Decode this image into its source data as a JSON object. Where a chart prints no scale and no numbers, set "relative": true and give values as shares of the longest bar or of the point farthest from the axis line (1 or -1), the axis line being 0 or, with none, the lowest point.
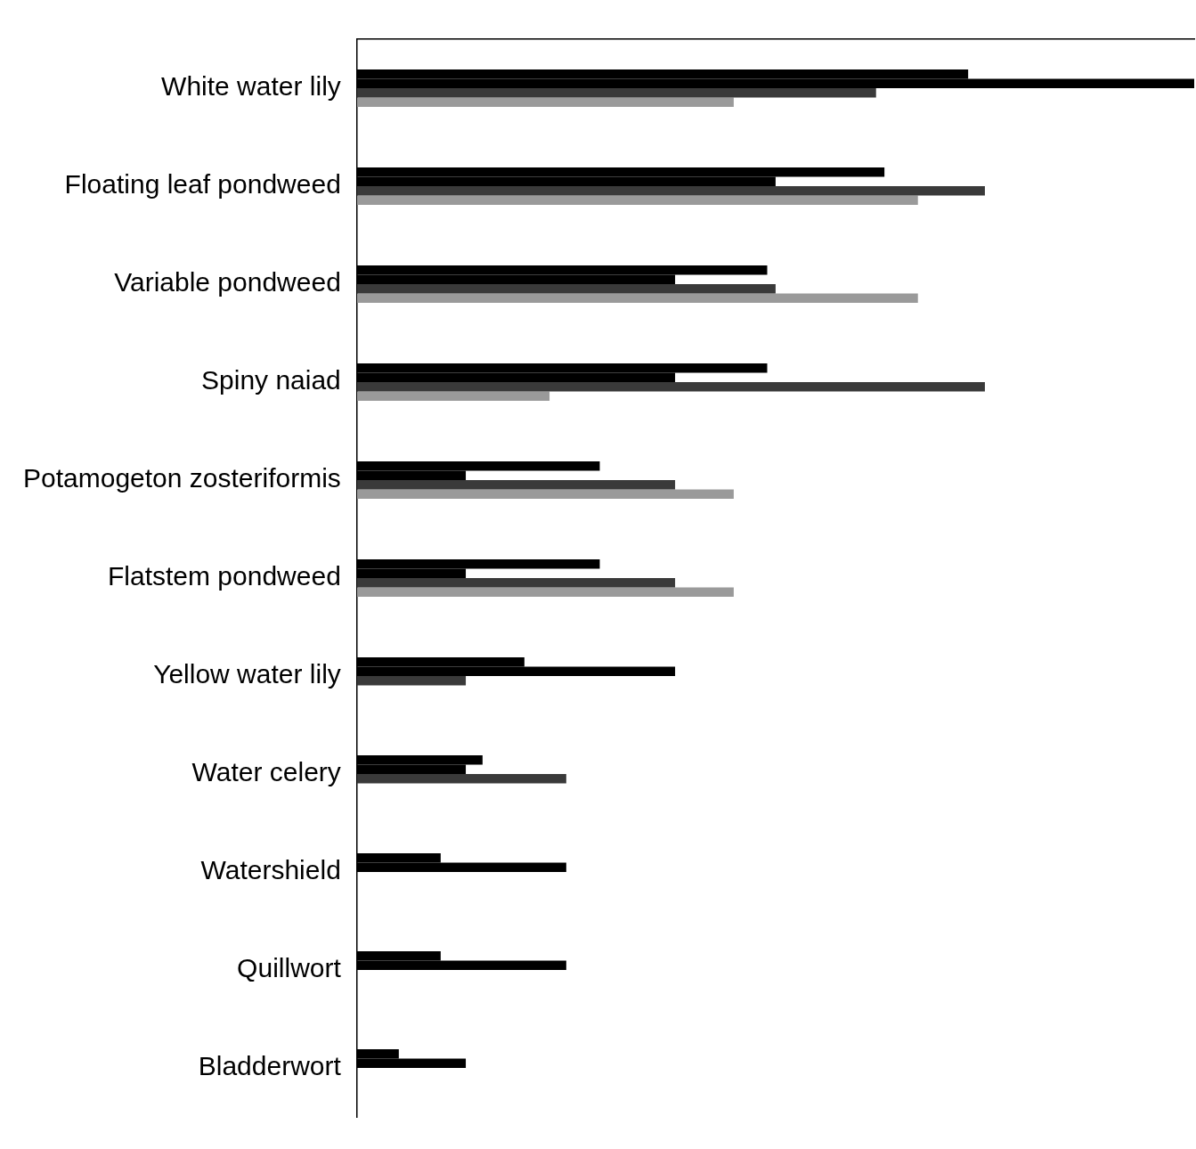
{
  "chart_data": {
    "type": "bar",
    "orientation": "horizontal",
    "relative": true,
    "categories": [
      "White water lily",
      "Floating leaf pondweed",
      "Variable pondweed",
      "Spiny naiad",
      "Potamogeton zosteriformis",
      "Flatstem pondweed",
      "Yellow water lily",
      "Water celery",
      "Watershield",
      "Quillwort",
      "Bladderwort"
    ],
    "series": [
      {
        "color": "#000000",
        "values": [
          0.73,
          0.63,
          0.49,
          0.49,
          0.29,
          0.29,
          0.2,
          0.15,
          0.1,
          0.1,
          0.05
        ]
      },
      {
        "color": "#000000",
        "values": [
          1,
          0.5,
          0.38,
          0.38,
          0.13,
          0.13,
          0.38,
          0.13,
          0.25,
          0.25,
          0.13
        ]
      },
      {
        "color": "#3a3a3a",
        "values": [
          0.62,
          0.75,
          0.5,
          0.75,
          0.38,
          0.38,
          0.13,
          0.25,
          null,
          null,
          null
        ]
      },
      {
        "color": "#9a9a9a",
        "values": [
          0.45,
          0.67,
          0.67,
          0.23,
          0.45,
          0.45,
          null,
          null,
          null,
          null,
          null
        ]
      }
    ],
    "grid": false,
    "legend": false
  }
}
